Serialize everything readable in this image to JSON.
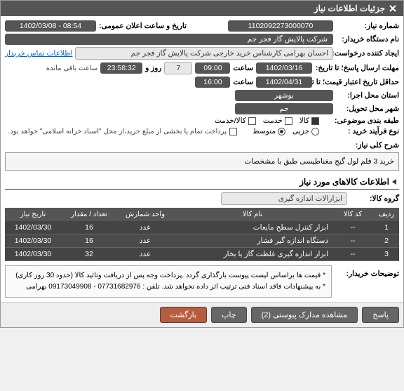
{
  "header": {
    "title": "جزئیات اطلاعات نیاز"
  },
  "form": {
    "need_no_label": "شماره نیاز:",
    "need_no": "1102092273000070",
    "announce_label": "تاریخ و ساعت اعلان عمومی:",
    "announce_value": "08:54 - 1402/03/08",
    "buyer_org_label": "نام دستگاه خریدار:",
    "buyer_org": "شرکت پالایش گاز فجر جم",
    "requester_label": "ایجاد کننده درخواست:",
    "requester": "احسان بهرامی کارشناس خرید خارجی شرکت پالایش گاز فجر جم",
    "contact_link": "اطلاعات تماس خریدار",
    "deadline_label": "مهلت ارسال پاسخ؛ تا تاریخ:",
    "deadline_date": "1402/03/16",
    "time_word": "ساعت",
    "deadline_time": "09:00",
    "days_remain": "7",
    "hms_remain": "23:58:32",
    "remain_suffix": "ساعت باقی مانده",
    "validity_label": "حداقل تاریخ اعتبار قیمت؛ تا تاریخ:",
    "validity_date": "1402/04/31",
    "validity_time": "16:00",
    "exec_loc_label": "استان محل اجرا:",
    "exec_loc": "بوشهر",
    "delivery_city_label": "شهر محل تحویل:",
    "delivery_city": "جم",
    "classify_label": "طبقه بندی موضوعی:",
    "radio_goods": "کالا",
    "radio_service": "خدمت",
    "radio_both": "کالا/خدمت",
    "purchase_type_label": "نوع فرآیند خرید :",
    "radio_small": "جزیی",
    "radio_medium": "متوسط",
    "purchase_note": "پرداخت تمام یا بخشی از مبلغ خرید،از محل \"اسناد خزانه اسلامی\" خواهد بود.",
    "desc_label": "شرح کلی نیاز:",
    "desc_text": "خرید 3 قلم لول گیج مغناطیسی طبق با مشخصات"
  },
  "goods": {
    "section_title": "اطلاعات کالاهای مورد نیاز",
    "group_label": "گروه کالا:",
    "group_value": "ابزارالات اندازه گیری",
    "columns": {
      "row": "ردیف",
      "code": "کد کالا",
      "name": "نام کالا",
      "unit": "واحد شمارش",
      "qty": "تعداد / مقدار",
      "date": "تاریخ نیاز"
    },
    "rows": [
      {
        "row": "1",
        "code": "--",
        "name": "ابزار كنترل سطح مایعات",
        "unit": "عدد",
        "qty": "16",
        "date": "1402/03/30"
      },
      {
        "row": "2",
        "code": "--",
        "name": "دستگاه اندازه گیر فشار",
        "unit": "عدد",
        "qty": "16",
        "date": "1402/03/30"
      },
      {
        "row": "3",
        "code": "--",
        "name": "ابزار اندازه گیری غلظت گاز یا بخار",
        "unit": "عدد",
        "qty": "32",
        "date": "1402/03/30"
      }
    ]
  },
  "buyer_notes": {
    "label": "توضیحات خریدار:",
    "line1": "* قیمت ها براساس لیست پیوست بارگذاری گردد .پرداخت وجه پس از دریافت وتائید کالا (حدود 30 روز کاری)",
    "line2": "* به پیشنهادات فاقد اسناد فنی ترتیب اثر داده نخواهد شد. تلفن : 07731682976 - 09173049908 بهرامی"
  },
  "footer": {
    "response": "پاسخ",
    "attachments": "مشاهده مدارک پیوستی (2)",
    "print": "چاپ",
    "back": "بازگشت"
  }
}
